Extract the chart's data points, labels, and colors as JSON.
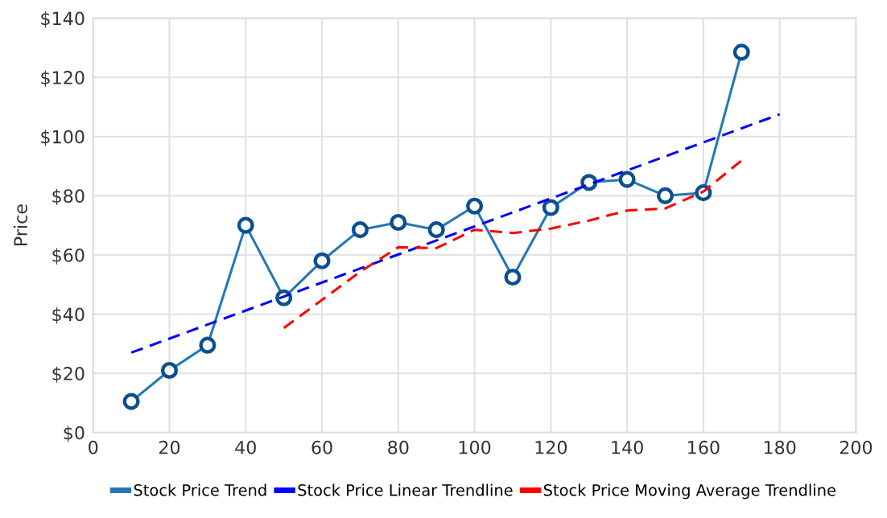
{
  "chart_data": {
    "type": "line",
    "ylabel": "Price",
    "series": [
      {
        "name": "Stock Price Trend",
        "color": "#2378b5",
        "marker": "circle",
        "line_style": "solid",
        "x": [
          10,
          20,
          30,
          40,
          50,
          60,
          70,
          80,
          90,
          100,
          110,
          120,
          130,
          140,
          150,
          160,
          170
        ],
        "values": [
          10.5,
          21,
          29.5,
          70,
          45.5,
          58,
          68.5,
          71,
          68.5,
          76.5,
          52.5,
          76,
          84.5,
          85.5,
          80,
          81,
          128.5
        ]
      },
      {
        "name": "Stock Price Linear Trendline",
        "color": "#0000ff",
        "marker": "none",
        "line_style": "dashed",
        "x": [
          10,
          180
        ],
        "values": [
          27,
          107.5
        ]
      },
      {
        "name": "Stock Price Moving Average Trendline",
        "color": "#ff0000",
        "marker": "none",
        "line_style": "dashed",
        "x": [
          50,
          60,
          70,
          80,
          90,
          100,
          110,
          120,
          130,
          140,
          150,
          160,
          170
        ],
        "values": [
          35.3,
          44.8,
          54.3,
          62.6,
          62.3,
          68.5,
          67.4,
          68.9,
          71.6,
          75,
          75.7,
          81.4,
          91.9
        ]
      }
    ],
    "xlim": [
      0,
      200
    ],
    "xticks": [
      0,
      20,
      40,
      60,
      80,
      100,
      120,
      140,
      160,
      180,
      200
    ],
    "ylim": [
      0,
      140
    ],
    "yticks": [
      {
        "value": 0,
        "label": "$0"
      },
      {
        "value": 20,
        "label": "$20"
      },
      {
        "value": 40,
        "label": "$40"
      },
      {
        "value": 60,
        "label": "$60"
      },
      {
        "value": 80,
        "label": "$80"
      },
      {
        "value": 100,
        "label": "$100"
      },
      {
        "value": 120,
        "label": "$120"
      },
      {
        "value": 140,
        "label": "$140"
      }
    ],
    "grid": true,
    "legend": "bottom"
  }
}
